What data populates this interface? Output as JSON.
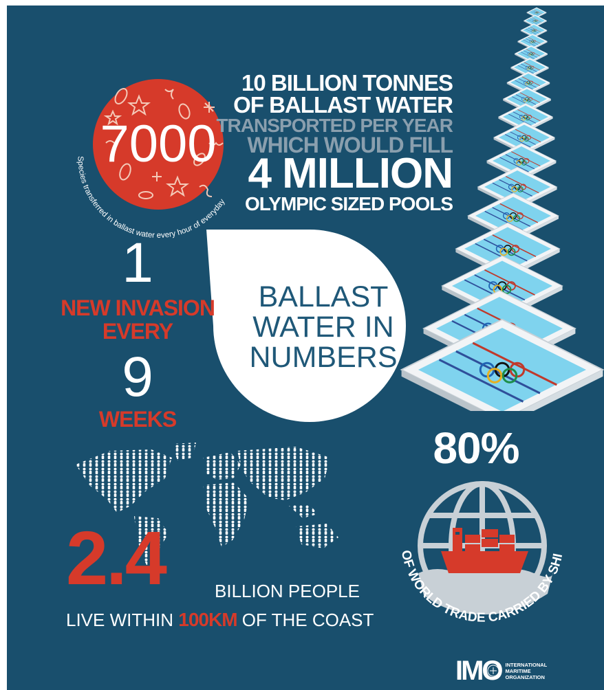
{
  "species": {
    "number": "7000",
    "caption": "Species transferred in ballast water every hour of everyday"
  },
  "tonnes": {
    "line1": "10 BILLION TONNES",
    "line2": "OF BALLAST WATER",
    "line3": "TRANSPORTED PER YEAR",
    "line4": "WHICH WOULD FILL",
    "line5": "4 MILLION",
    "line6": "OLYMPIC SIZED POOLS"
  },
  "title": {
    "line1": "BALLAST",
    "line2": "WATER IN",
    "line3": "NUMBERS"
  },
  "invasion": {
    "number1": "1",
    "line1": "NEW INVASION",
    "line2": "EVERY",
    "number2": "9",
    "line3": "WEEKS"
  },
  "trade": {
    "percent": "80%",
    "caption": "OF WORLD TRADE CARRIED BY SHIPS"
  },
  "coast": {
    "number": "2.4",
    "line1": "BILLION PEOPLE",
    "prefix": "LIVE WITHIN",
    "highlight": "100KM",
    "suffix": "OF THE COAST"
  },
  "logo": {
    "mark": "IMO",
    "line1": "INTERNATIONAL",
    "line2": "MARITIME",
    "line3": "ORGANIZATION"
  },
  "colors": {
    "background": "#194f6d",
    "red": "#d63a2a",
    "grey_text": "#8a9fae",
    "pool_water": "#7fd3ee"
  },
  "icons": [
    "starfish-icon",
    "seed-icon",
    "plankton-icon",
    "swimming-pool-icon",
    "olympic-rings-icon",
    "globe-icon",
    "cargo-ship-icon",
    "world-map-people-icon"
  ]
}
